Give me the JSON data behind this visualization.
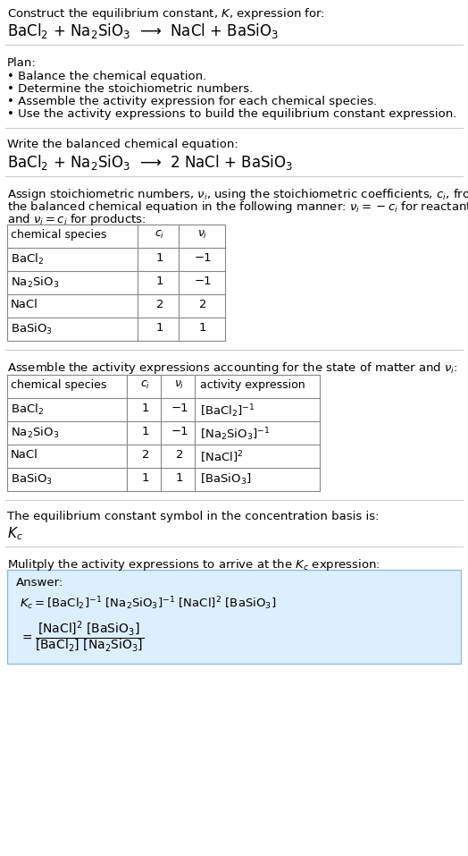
{
  "title_line1": "Construct the equilibrium constant, $K$, expression for:",
  "reaction_unbalanced": "BaCl$_2$ + Na$_2$SiO$_3$  ⟶  NaCl + BaSiO$_3$",
  "plan_header": "Plan:",
  "plan_bullets": [
    "• Balance the chemical equation.",
    "• Determine the stoichiometric numbers.",
    "• Assemble the activity expression for each chemical species.",
    "• Use the activity expressions to build the equilibrium constant expression."
  ],
  "balanced_header": "Write the balanced chemical equation:",
  "reaction_balanced": "BaCl$_2$ + Na$_2$SiO$_3$  ⟶  2 NaCl + BaSiO$_3$",
  "stoich_intro_1": "Assign stoichiometric numbers, $\\nu_i$, using the stoichiometric coefficients, $c_i$, from",
  "stoich_intro_2": "the balanced chemical equation in the following manner: $\\nu_i = -c_i$ for reactants",
  "stoich_intro_3": "and $\\nu_i = c_i$ for products:",
  "table1_headers": [
    "chemical species",
    "$c_i$",
    "$\\nu_i$"
  ],
  "table1_rows": [
    [
      "BaCl$_2$",
      "1",
      "−1"
    ],
    [
      "Na$_2$SiO$_3$",
      "1",
      "−1"
    ],
    [
      "NaCl",
      "2",
      "2"
    ],
    [
      "BaSiO$_3$",
      "1",
      "1"
    ]
  ],
  "assemble_intro": "Assemble the activity expressions accounting for the state of matter and $\\nu_i$:",
  "table2_headers": [
    "chemical species",
    "$c_i$",
    "$\\nu_i$",
    "activity expression"
  ],
  "table2_rows": [
    [
      "BaCl$_2$",
      "1",
      "−1",
      "[BaCl$_2$]$^{-1}$"
    ],
    [
      "Na$_2$SiO$_3$",
      "1",
      "−1",
      "[Na$_2$SiO$_3$]$^{-1}$"
    ],
    [
      "NaCl",
      "2",
      "2",
      "[NaCl]$^2$"
    ],
    [
      "BaSiO$_3$",
      "1",
      "1",
      "[BaSiO$_3$]"
    ]
  ],
  "kc_symbol_text": "The equilibrium constant symbol in the concentration basis is:",
  "kc_symbol": "$K_c$",
  "multiply_text": "Mulitply the activity expressions to arrive at the $K_c$ expression:",
  "answer_label": "Answer:",
  "bg_color": "#ffffff",
  "answer_bg": "#ddeeff",
  "answer_border": "#99bbdd"
}
